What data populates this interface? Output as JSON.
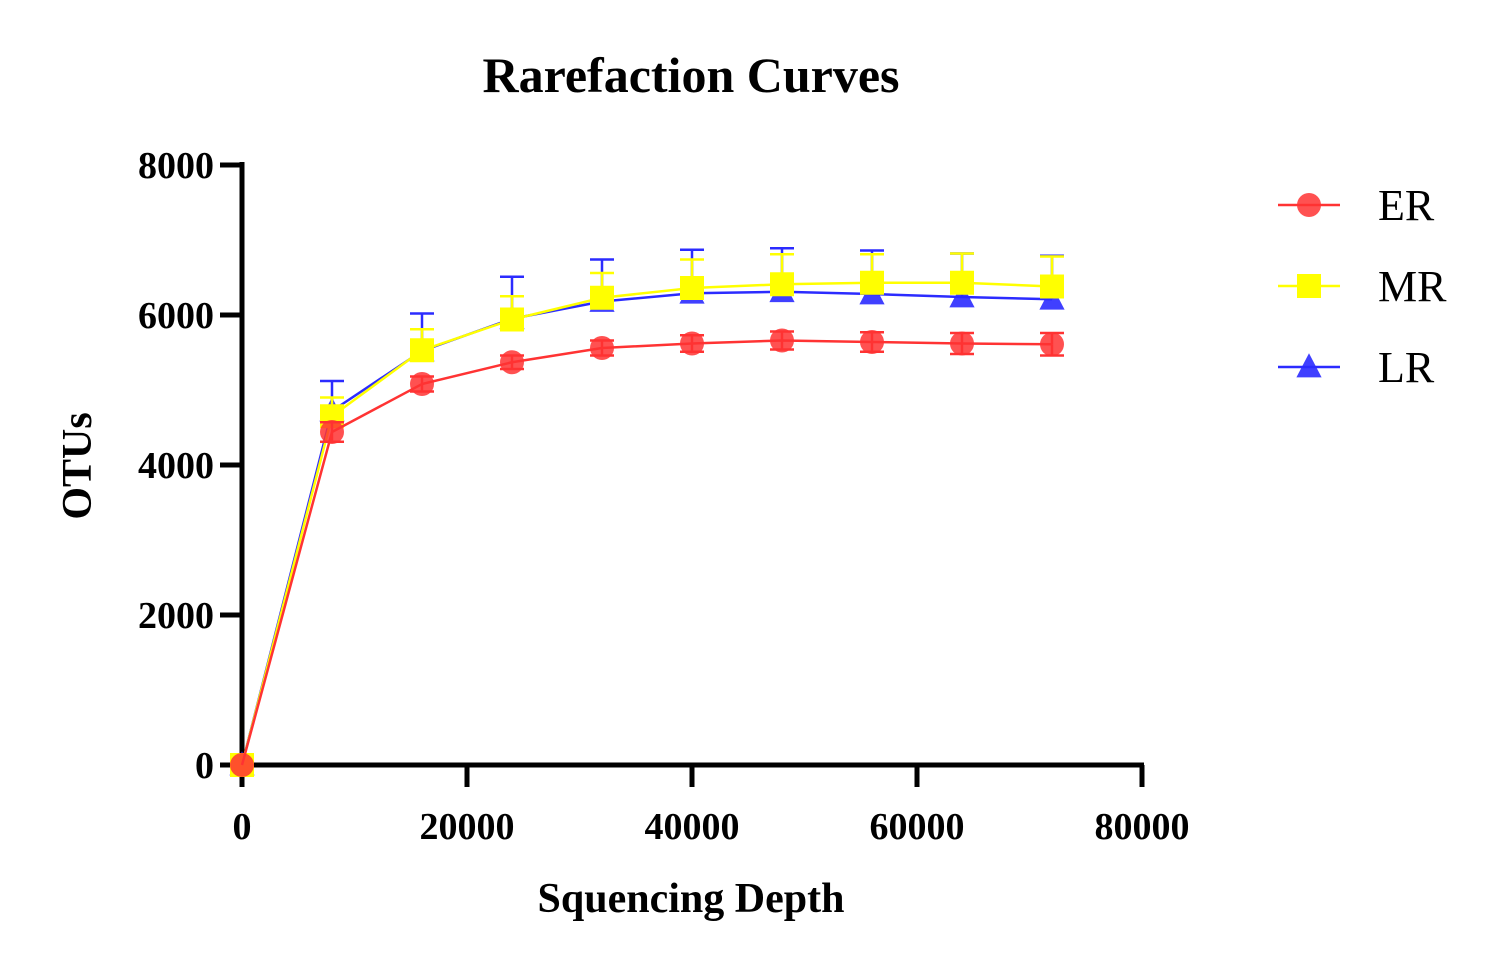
{
  "chart_data": {
    "type": "line",
    "title": "Rarefaction Curves",
    "xlabel": "Squencing Depth",
    "ylabel": "OTUs",
    "xlim": [
      0,
      80000
    ],
    "ylim": [
      0,
      8000
    ],
    "x_ticks": [
      "0",
      "20000",
      "40000",
      "60000",
      "80000"
    ],
    "y_ticks": [
      "0",
      "2000",
      "4000",
      "6000",
      "8000"
    ],
    "grid": false,
    "legend_position": "right",
    "x": [
      0,
      8000,
      16000,
      24000,
      32000,
      40000,
      48000,
      56000,
      64000,
      72000
    ],
    "series": [
      {
        "name": "LR",
        "color": "#2b2bff",
        "marker": "triangle",
        "values": [
          0,
          4720,
          5520,
          5950,
          6180,
          6290,
          6310,
          6280,
          6240,
          6210
        ],
        "error": [
          0,
          400,
          500,
          560,
          560,
          580,
          580,
          580,
          580,
          580
        ]
      },
      {
        "name": "MR",
        "color": "#ffff00",
        "marker": "square",
        "values": [
          0,
          4650,
          5530,
          5940,
          6230,
          6360,
          6410,
          6430,
          6430,
          6380
        ],
        "error": [
          0,
          250,
          280,
          310,
          330,
          380,
          400,
          380,
          390,
          400
        ]
      },
      {
        "name": "ER",
        "color": "#ff3333",
        "marker": "circle",
        "values": [
          0,
          4440,
          5080,
          5370,
          5560,
          5620,
          5660,
          5640,
          5620,
          5610
        ],
        "error": [
          0,
          130,
          100,
          90,
          100,
          110,
          120,
          130,
          140,
          150
        ]
      }
    ],
    "legend_order": [
      "ER",
      "MR",
      "LR"
    ]
  }
}
